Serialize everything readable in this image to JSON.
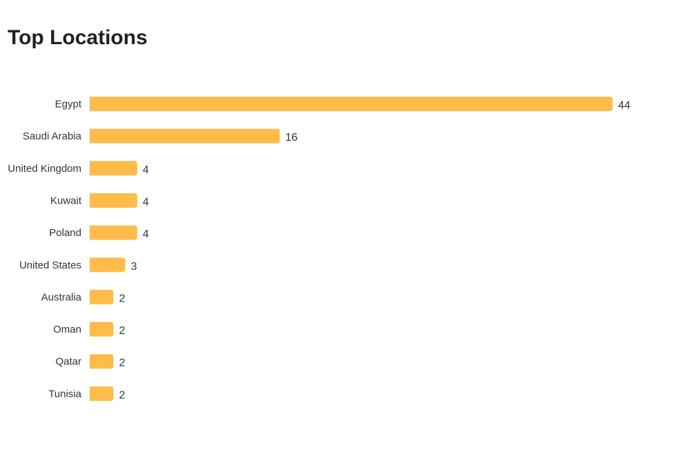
{
  "header": {
    "title": "Top Locations"
  },
  "chart_data": {
    "type": "bar",
    "orientation": "horizontal",
    "categories": [
      "Egypt",
      "Saudi Arabia",
      "United Kingdom",
      "Kuwait",
      "Poland",
      "United States",
      "Australia",
      "Oman",
      "Qatar",
      "Tunisia"
    ],
    "values": [
      44,
      16,
      4,
      4,
      4,
      3,
      2,
      2,
      2,
      2
    ],
    "title": "Top Locations",
    "xlabel": "",
    "ylabel": "",
    "xlim": [
      0,
      44
    ],
    "grid": false,
    "legend": "none",
    "bar_color": "#FFBC4A"
  }
}
